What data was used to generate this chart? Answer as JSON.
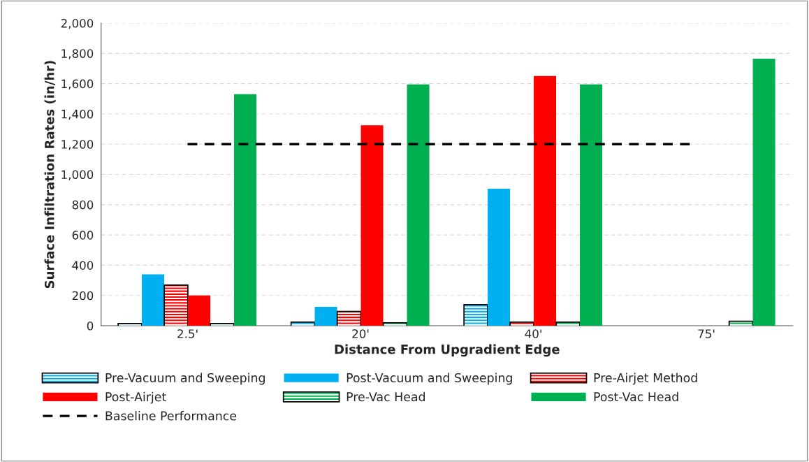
{
  "chart_data": {
    "type": "bar",
    "xlabel": "Distance From Upgradient Edge",
    "ylabel": "Surface Infiltration Rates (in/hr)",
    "categories": [
      "2.5'",
      "20'",
      "40'",
      "75'"
    ],
    "series": [
      {
        "name": "Pre-Vacuum and Sweeping",
        "color": "#00b0f0",
        "values": [
          10,
          20,
          135,
          null
        ]
      },
      {
        "name": "Post-Vacuum and Sweeping",
        "color": "#00b0f0",
        "values": [
          340,
          125,
          905,
          null
        ]
      },
      {
        "name": "Pre-Airjet Method",
        "color": "#ff0000",
        "values": [
          265,
          90,
          20,
          null
        ]
      },
      {
        "name": "Post-Airjet",
        "color": "#ff0000",
        "values": [
          200,
          1325,
          1650,
          null
        ]
      },
      {
        "name": "Pre-Vac Head",
        "color": "#00b050",
        "values": [
          10,
          15,
          20,
          25
        ]
      },
      {
        "name": "Post-Vac Head",
        "color": "#00b050",
        "values": [
          1530,
          1595,
          1595,
          1765
        ]
      }
    ],
    "ref_lines": [
      {
        "axis": "y",
        "value": 1200,
        "label": "Baseline Performance",
        "color": "#000000",
        "line_style": "dashed"
      }
    ],
    "ylim": [
      0,
      2000
    ],
    "yticks": [
      {
        "value": 0,
        "label": "0"
      },
      {
        "value": 200,
        "label": "200"
      },
      {
        "value": 400,
        "label": "400"
      },
      {
        "value": 600,
        "label": "600"
      },
      {
        "value": 800,
        "label": "800"
      },
      {
        "value": 1000,
        "label": "1,000"
      },
      {
        "value": 1200,
        "label": "1,200"
      },
      {
        "value": 1400,
        "label": "1,400"
      },
      {
        "value": 1600,
        "label": "1,600"
      },
      {
        "value": 1800,
        "label": "1,800"
      },
      {
        "value": 2000,
        "label": "2,000"
      }
    ],
    "grid": "y",
    "legend": "bottom"
  }
}
